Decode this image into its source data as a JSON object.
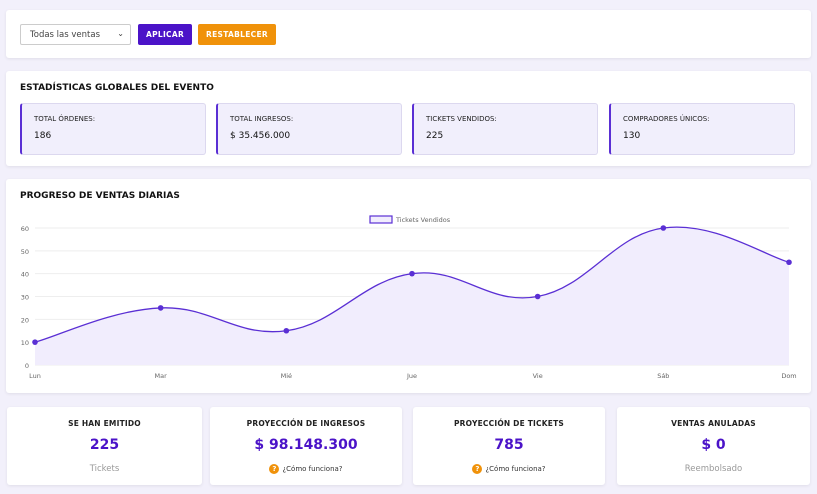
{
  "filters": {
    "select_value": "Todas las ventas",
    "apply_label": "APLICAR",
    "reset_label": "RESTABLECER"
  },
  "global_stats": {
    "title": "ESTADÍSTICAS GLOBALES DEL EVENTO",
    "items": [
      {
        "label": "TOTAL ÓRDENES:",
        "value": "186"
      },
      {
        "label": "TOTAL INGRESOS:",
        "value": "$ 35.456.000"
      },
      {
        "label": "TICKETS VENDIDOS:",
        "value": "225"
      },
      {
        "label": "COMPRADORES ÚNICOS:",
        "value": "130"
      }
    ]
  },
  "daily": {
    "title": "PROGRESO DE VENTAS DIARIAS"
  },
  "chart_data": {
    "type": "line",
    "title": "PROGRESO DE VENTAS DIARIAS",
    "categories": [
      "Lun",
      "Mar",
      "Mié",
      "Jue",
      "Vie",
      "Sáb",
      "Dom"
    ],
    "series": [
      {
        "name": "Tickets Vendidos",
        "values": [
          10,
          25,
          15,
          40,
          30,
          60,
          45
        ]
      }
    ],
    "ylim": [
      0,
      60
    ],
    "yticks": [
      0,
      10,
      20,
      30,
      40,
      50,
      60
    ],
    "legend": "top",
    "grid": true,
    "color": "#5a2fd4",
    "fill": "#f1edfd"
  },
  "summary": [
    {
      "title": "SE HAN EMITIDO",
      "value": "225",
      "sub": "Tickets"
    },
    {
      "title": "PROYECCIÓN DE INGRESOS",
      "value": "$ 98.148.300",
      "help": "¿Cómo funciona?"
    },
    {
      "title": "PROYECCIÓN DE TICKETS",
      "value": "785",
      "help": "¿Cómo funciona?"
    },
    {
      "title": "VENTAS ANULADAS",
      "value": "$ 0",
      "sub": "Reembolsado"
    }
  ],
  "colors": {
    "primary": "#4b13c8",
    "accent": "#f0920a",
    "background": "#f2f0fb"
  }
}
